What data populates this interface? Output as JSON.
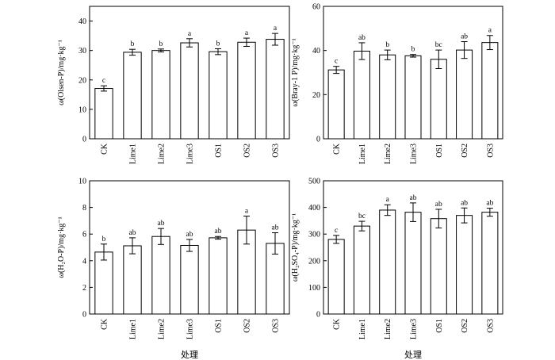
{
  "chart_data": [
    {
      "type": "bar",
      "categories": [
        "CK",
        "Lime1",
        "Lime2",
        "Lime3",
        "OS1",
        "OS2",
        "OS3"
      ],
      "values": [
        17.1,
        29.4,
        30.0,
        32.6,
        29.6,
        32.8,
        33.8
      ],
      "errors": [
        0.9,
        1.0,
        0.5,
        1.4,
        1.0,
        1.4,
        2.0
      ],
      "sig_letters": [
        "c",
        "b",
        "b",
        "a",
        "b",
        "a",
        "a"
      ],
      "ylabel": "ω(Olsen-P)/mg·kg⁻¹",
      "xlabel": "",
      "ylim": [
        0,
        45
      ],
      "yticks": [
        0,
        10,
        20,
        30,
        40
      ],
      "grid": false
    },
    {
      "type": "bar",
      "categories": [
        "CK",
        "Lime1",
        "Lime2",
        "Lime3",
        "OS1",
        "OS2",
        "OS3"
      ],
      "values": [
        31.2,
        39.7,
        38.0,
        37.6,
        36.0,
        40.2,
        43.6
      ],
      "errors": [
        1.6,
        3.8,
        2.2,
        0.6,
        4.2,
        3.8,
        3.2
      ],
      "sig_letters": [
        "c",
        "ab",
        "b",
        "b",
        "bc",
        "ab",
        "a"
      ],
      "ylabel": "ω(Bray-1 P)/mg·kg⁻¹",
      "xlabel": "",
      "ylim": [
        0,
        60
      ],
      "yticks": [
        0,
        20,
        40,
        60
      ],
      "grid": false
    },
    {
      "type": "bar",
      "categories": [
        "CK",
        "Lime1",
        "Lime2",
        "Lime3",
        "OS1",
        "OS2",
        "OS3"
      ],
      "values": [
        4.65,
        5.12,
        5.82,
        5.15,
        5.72,
        6.3,
        5.3
      ],
      "errors": [
        0.6,
        0.6,
        0.6,
        0.45,
        0.1,
        1.05,
        0.8
      ],
      "sig_letters": [
        "b",
        "ab",
        "ab",
        "ab",
        "ab",
        "a",
        "ab"
      ],
      "ylabel": "ω(H₂O-P)/mg·kg⁻¹",
      "xlabel": "处理",
      "ylim": [
        0,
        10
      ],
      "yticks": [
        0,
        2,
        4,
        6,
        8,
        10
      ],
      "grid": false
    },
    {
      "type": "bar",
      "categories": [
        "CK",
        "Lime1",
        "Lime2",
        "Lime3",
        "OS1",
        "OS2",
        "OS3"
      ],
      "values": [
        280,
        330,
        390,
        382,
        358,
        370,
        382
      ],
      "errors": [
        15,
        18,
        20,
        35,
        35,
        28,
        15
      ],
      "sig_letters": [
        "c",
        "bc",
        "a",
        "ab",
        "ab",
        "ab",
        "ab"
      ],
      "ylabel": "ω(H₂SO₄-P)/mg·kg⁻¹",
      "xlabel": "处理",
      "ylim": [
        0,
        500
      ],
      "yticks": [
        0,
        100,
        200,
        300,
        400,
        500
      ],
      "grid": false
    }
  ]
}
